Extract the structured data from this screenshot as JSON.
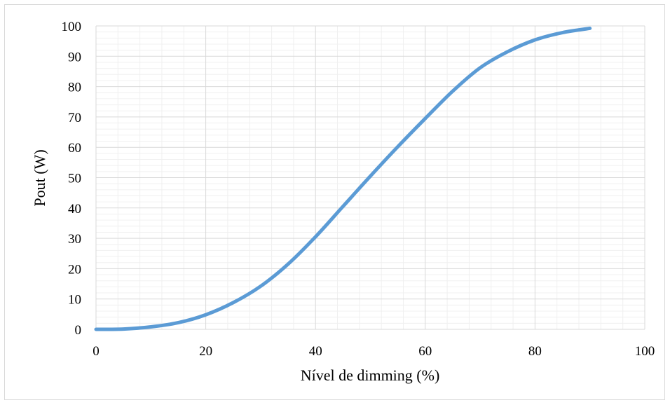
{
  "chart_data": {
    "type": "line",
    "title": "",
    "xlabel": "Nível de dimming (%)",
    "ylabel": "Pout (W)",
    "xlim": [
      0,
      100
    ],
    "ylim": [
      0,
      100
    ],
    "x_ticks": [
      "0",
      "20",
      "40",
      "60",
      "80",
      "100"
    ],
    "y_ticks": [
      "0",
      "10",
      "20",
      "30",
      "40",
      "50",
      "60",
      "70",
      "80",
      "90",
      "100"
    ],
    "grid": true,
    "legend": "none",
    "series": [
      {
        "color": "#5b9bd5",
        "x": [
          0,
          5,
          10,
          15,
          20,
          25,
          30,
          35,
          40,
          45,
          50,
          55,
          60,
          65,
          70,
          75,
          80,
          85,
          90
        ],
        "y": [
          0,
          0.1,
          0.8,
          2.2,
          4.8,
          8.8,
          14.2,
          21.5,
          30.5,
          40.5,
          50.5,
          60.2,
          69.5,
          78.5,
          86.2,
          91.5,
          95.4,
          97.8,
          99.2
        ]
      }
    ]
  }
}
